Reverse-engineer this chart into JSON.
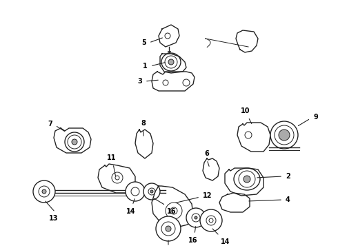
{
  "bg_color": "#ffffff",
  "line_color": "#222222",
  "label_color": "#000000",
  "fig_width": 4.9,
  "fig_height": 3.6,
  "dpi": 100
}
